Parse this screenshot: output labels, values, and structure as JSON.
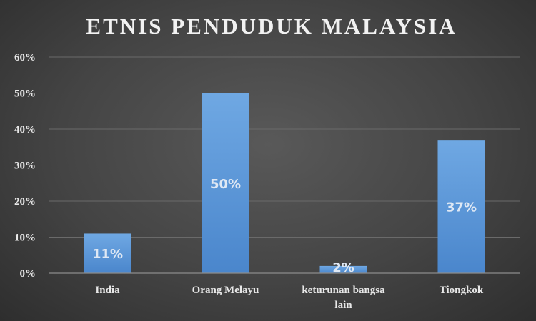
{
  "chart_data": {
    "type": "bar",
    "title": "ETNIS PENDUDUK MALAYSIA",
    "categories": [
      [
        "India"
      ],
      [
        "Orang Melayu"
      ],
      [
        "keturunan bangsa",
        "lain"
      ],
      [
        "Tiongkok"
      ]
    ],
    "values": [
      11,
      50,
      2,
      37
    ],
    "data_labels": [
      "11%",
      "50%",
      "2%",
      "37%"
    ],
    "yticks": [
      "0%",
      "10%",
      "20%",
      "30%",
      "40%",
      "50%",
      "60%"
    ],
    "ylim": [
      0,
      60
    ],
    "grid": true,
    "legend": "none",
    "colors": {
      "bar_top": "#6fa8e3",
      "bar_bottom": "#4a86cc",
      "grid": "#6a6a6a",
      "axis": "#8c8c8c",
      "text": "#e8e8e8"
    }
  }
}
